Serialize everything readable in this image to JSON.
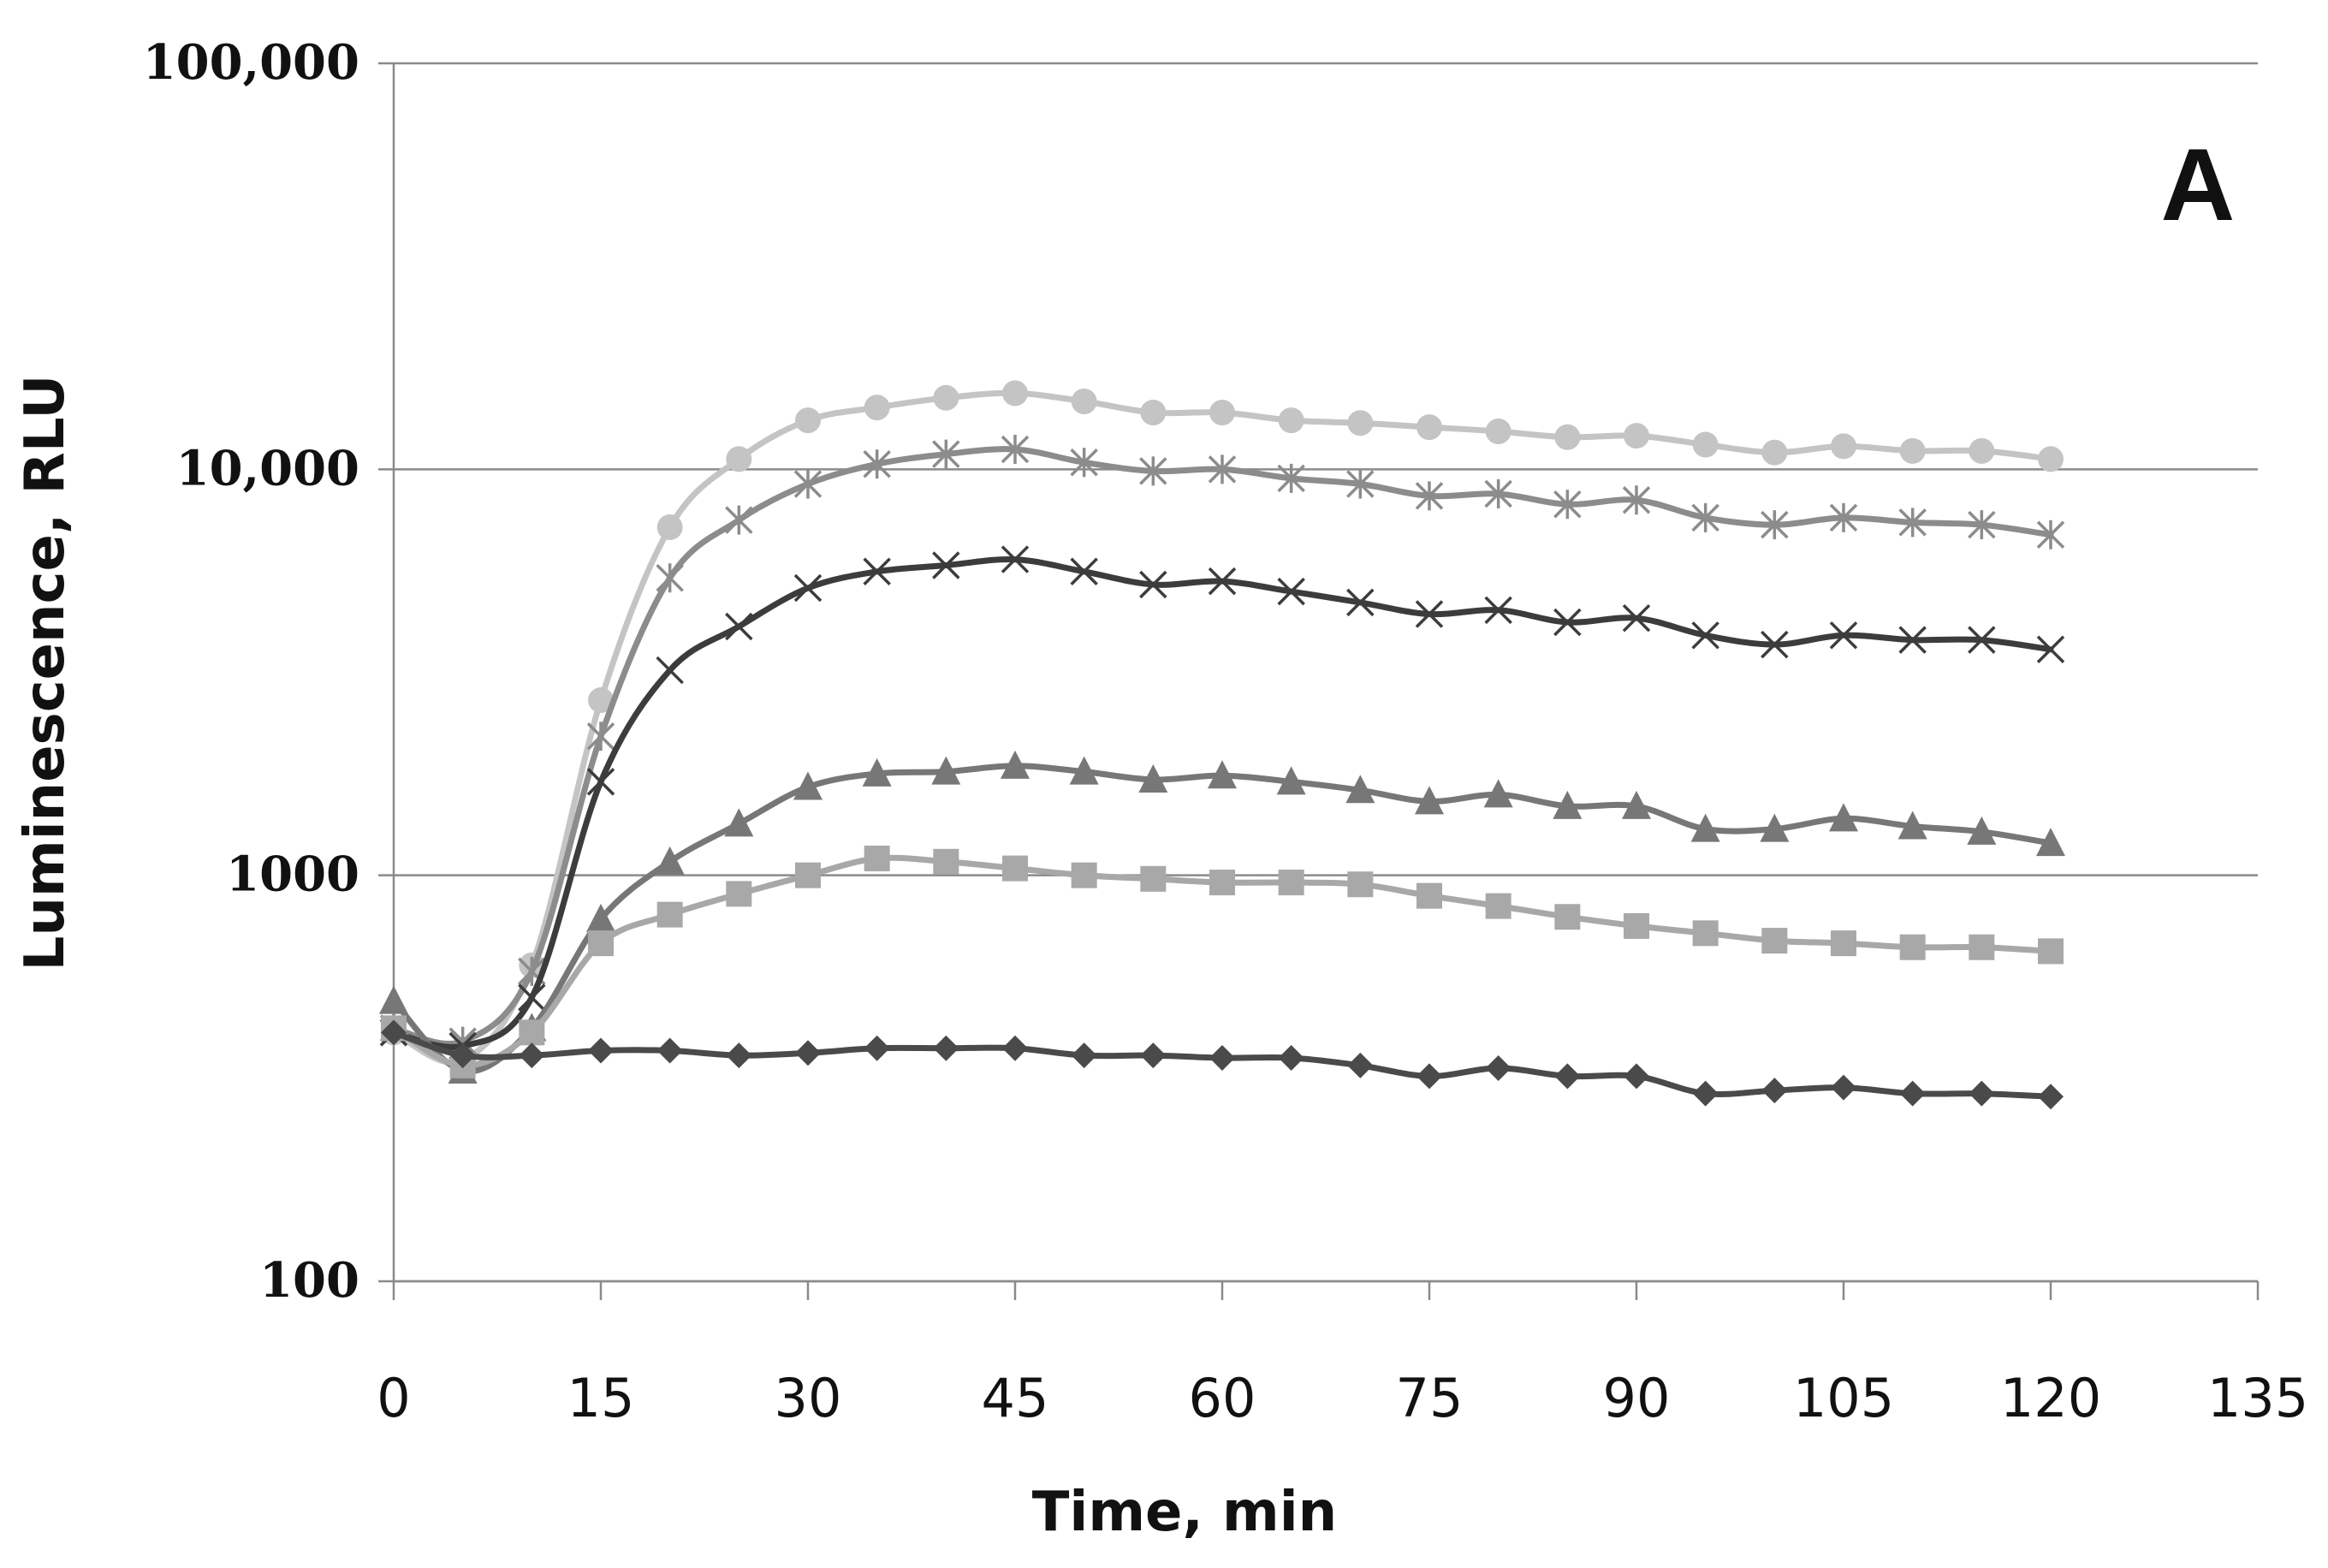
{
  "chart_data": {
    "type": "line",
    "panel_label": "A",
    "xlabel": "Time, min",
    "ylabel": "Luminescence, RLU",
    "y_scale": "log",
    "xlim": [
      0,
      135
    ],
    "ylim": [
      100,
      100000
    ],
    "x_ticks": [
      0,
      15,
      30,
      45,
      60,
      75,
      90,
      105,
      120,
      135
    ],
    "x_tick_labels": [
      "0",
      "15",
      "30",
      "45",
      "60",
      "75",
      "90",
      "105",
      "120",
      "135"
    ],
    "y_ticks": [
      100,
      1000,
      10000,
      100000
    ],
    "y_tick_labels": [
      "100",
      "1000",
      "10,000",
      "100,000"
    ],
    "grid": "horizontal",
    "x": [
      0,
      5,
      10,
      15,
      20,
      25,
      30,
      35,
      40,
      45,
      50,
      55,
      60,
      65,
      70,
      75,
      80,
      85,
      90,
      95,
      100,
      105,
      110,
      115,
      120
    ],
    "series": [
      {
        "name": "circle",
        "marker": "circle",
        "color": "#c4c4c4",
        "values": [
          410,
          350,
          600,
          2700,
          7200,
          10600,
          13200,
          14200,
          15000,
          15400,
          14700,
          13800,
          13800,
          13200,
          13000,
          12700,
          12400,
          12000,
          12100,
          11500,
          11000,
          11400,
          11100,
          11100,
          10600
        ]
      },
      {
        "name": "asterisk",
        "marker": "asterisk",
        "color": "#8c8c8c",
        "values": [
          420,
          390,
          580,
          2200,
          5400,
          7500,
          9200,
          10300,
          10900,
          11200,
          10400,
          9900,
          10000,
          9500,
          9200,
          8600,
          8700,
          8200,
          8400,
          7600,
          7300,
          7600,
          7400,
          7300,
          6900
        ]
      },
      {
        "name": "x",
        "marker": "x",
        "color": "#3c3c3c",
        "values": [
          410,
          380,
          500,
          1700,
          3200,
          4100,
          5100,
          5600,
          5800,
          6000,
          5600,
          5200,
          5300,
          5000,
          4700,
          4400,
          4500,
          4200,
          4300,
          3900,
          3700,
          3900,
          3800,
          3800,
          3600
        ]
      },
      {
        "name": "triangle",
        "marker": "triangle",
        "color": "#777777",
        "values": [
          490,
          330,
          420,
          780,
          1080,
          1340,
          1650,
          1780,
          1800,
          1860,
          1800,
          1720,
          1760,
          1700,
          1620,
          1520,
          1580,
          1480,
          1480,
          1300,
          1300,
          1380,
          1320,
          1280,
          1200
        ]
      },
      {
        "name": "square",
        "marker": "square",
        "color": "#a8a8a8",
        "values": [
          420,
          340,
          410,
          680,
          800,
          900,
          1000,
          1100,
          1080,
          1040,
          1000,
          980,
          960,
          960,
          950,
          890,
          840,
          790,
          750,
          720,
          690,
          680,
          665,
          665,
          650
        ]
      },
      {
        "name": "diamond",
        "marker": "diamond",
        "color": "#4a4a4a",
        "values": [
          410,
          360,
          360,
          370,
          370,
          360,
          365,
          375,
          375,
          375,
          360,
          360,
          355,
          355,
          340,
          320,
          335,
          320,
          320,
          290,
          295,
          300,
          290,
          290,
          285
        ]
      }
    ]
  }
}
